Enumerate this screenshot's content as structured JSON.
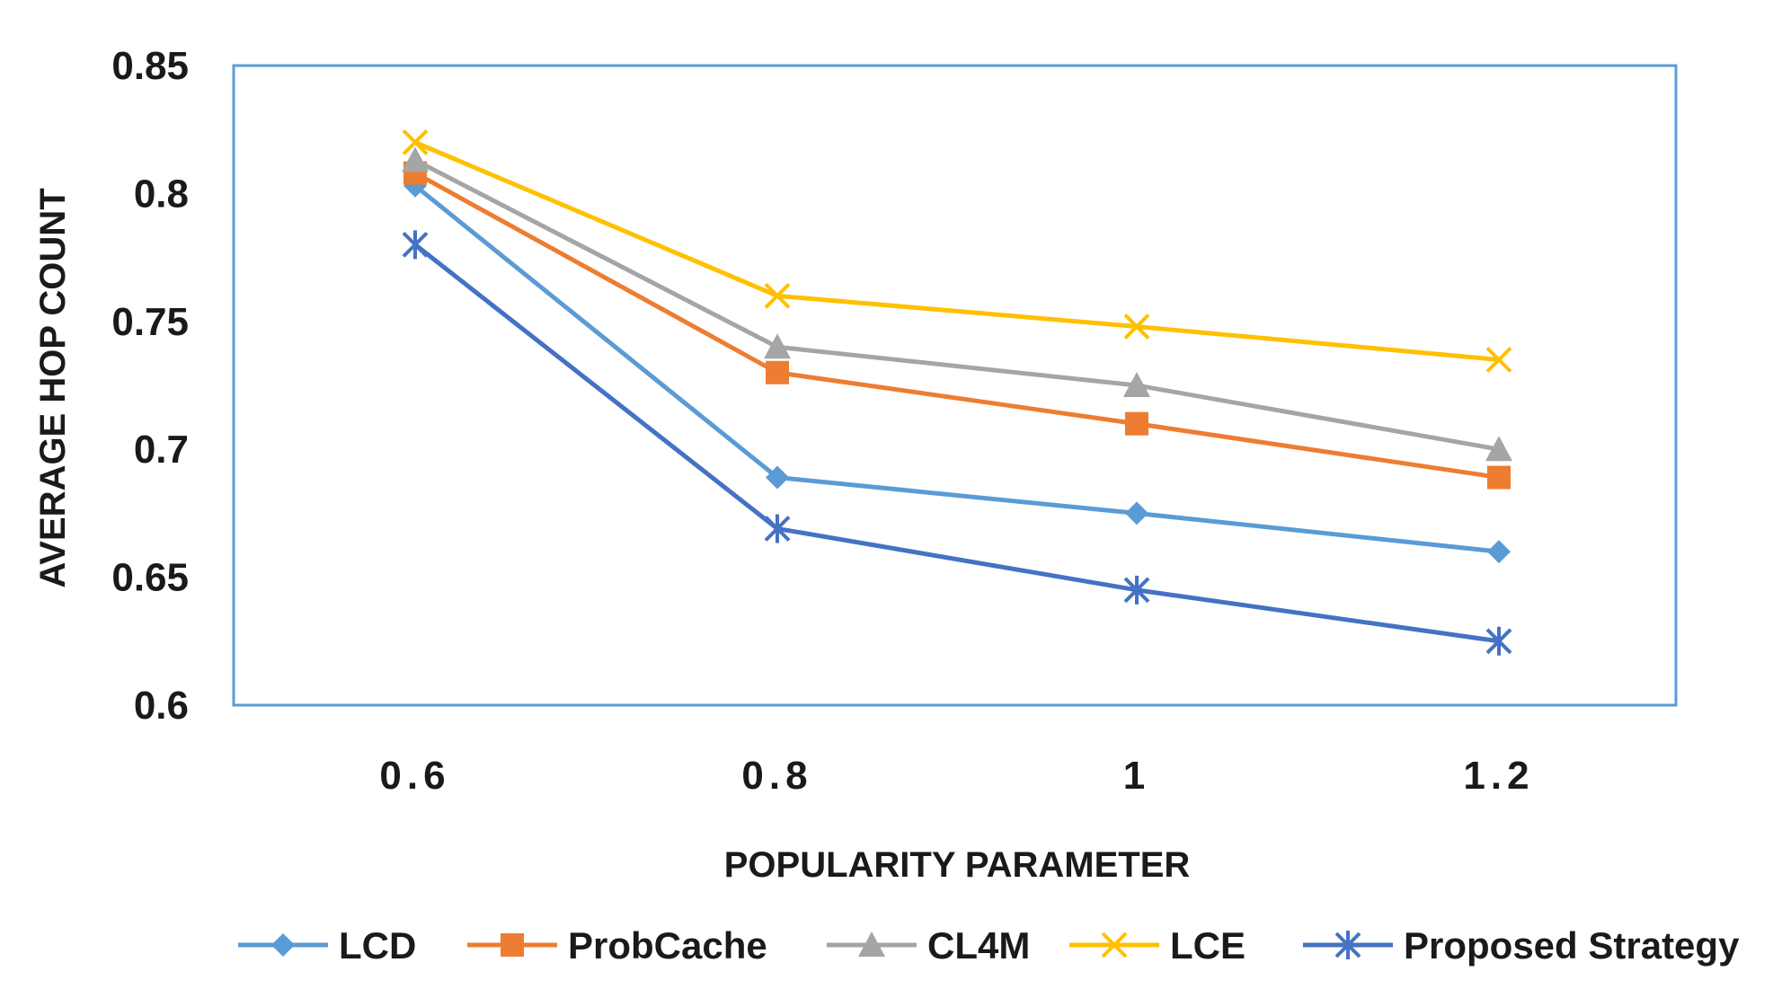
{
  "chart_data": {
    "type": "line",
    "title": "",
    "xlabel": "POPULARITY PARAMETER",
    "ylabel": "AVERAGE HOP COUNT",
    "categories": [
      "0.6",
      "0.8",
      "1",
      "1.2"
    ],
    "yticks": [
      "0.6",
      "0.65",
      "0.7",
      "0.75",
      "0.8",
      "0.85"
    ],
    "ylim": [
      0.6,
      0.85
    ],
    "grid": false,
    "legend_position": "bottom",
    "series": [
      {
        "name": "LCD",
        "marker": "diamond",
        "color": "#5B9BD5",
        "values": [
          0.803,
          0.689,
          0.675,
          0.66
        ]
      },
      {
        "name": "ProbCache",
        "marker": "square",
        "color": "#ED7D31",
        "values": [
          0.808,
          0.73,
          0.71,
          0.689
        ]
      },
      {
        "name": "CL4M",
        "marker": "triangle",
        "color": "#A5A5A5",
        "values": [
          0.813,
          0.74,
          0.725,
          0.7
        ]
      },
      {
        "name": "LCE",
        "marker": "x",
        "color": "#FFC000",
        "values": [
          0.82,
          0.76,
          0.748,
          0.735
        ]
      },
      {
        "name": "Proposed Strategy",
        "marker": "star",
        "color": "#4472C4",
        "values": [
          0.78,
          0.669,
          0.645,
          0.625
        ]
      }
    ]
  }
}
